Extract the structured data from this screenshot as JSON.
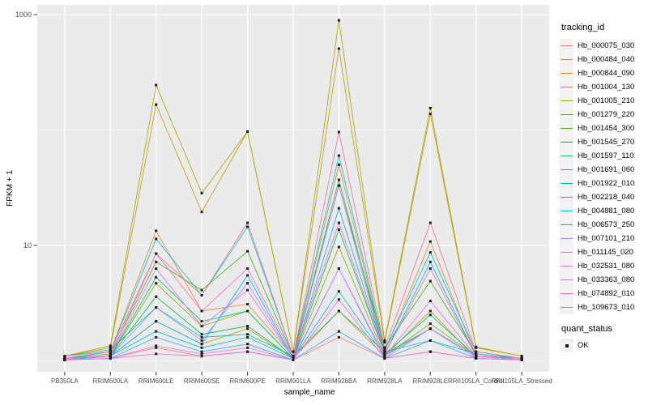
{
  "figure": {
    "y_axis_title": "FPKM + 1",
    "x_axis_title": "sample_name"
  },
  "legend": {
    "tracking_title": "tracking_id",
    "quant_title": "quant_status",
    "quant_items": [
      {
        "label": "OK"
      }
    ]
  },
  "chart_data": {
    "type": "line",
    "title": "",
    "xlabel": "sample_name",
    "ylabel": "FPKM + 1",
    "y_scale": "log10",
    "ylim": [
      0.8,
      1200
    ],
    "grid": "on",
    "legend_position": "right",
    "panel_bg": "#EBEBEB",
    "grid_color": "#FFFFFF",
    "point_color": "#1a1a1a",
    "axis_text_color": "#4D4D4D",
    "y_ticks": [
      {
        "label": "1000",
        "value": 1000
      },
      {
        "label": "10",
        "value": 10
      }
    ],
    "y_minor_ticks": [
      1,
      100
    ],
    "categories": [
      "PB350LA",
      "RRIM600LA",
      "RRIM600LE",
      "RRIM600SE",
      "RRIM600PE",
      "RRIM901LA",
      "RRIM928BA",
      "RRIM928LA",
      "RRIM928LE",
      "RRII105LA_Control",
      "RRII105LA_Stressed"
    ],
    "series": [
      {
        "name": "Hb_000075_030",
        "color": "#F8766D",
        "values": [
          1.02,
          1.05,
          1.3,
          1.1,
          1.2,
          1.02,
          1.6,
          1.05,
          1.2,
          1.05,
          1.02
        ]
      },
      {
        "name": "Hb_000484_040",
        "color": "#EA8331",
        "values": [
          1.05,
          1.2,
          13.4,
          2.7,
          3.1,
          1.1,
          50,
          1.2,
          10.8,
          1.1,
          1.05
        ]
      },
      {
        "name": "Hb_000844_090",
        "color": "#D89000",
        "values": [
          1.02,
          1.1,
          2.2,
          1.4,
          1.9,
          1.05,
          2.7,
          1.1,
          2.7,
          1.05,
          1.02
        ]
      },
      {
        "name": "Hb_001004_130",
        "color": "#C09B00",
        "values": [
          1.1,
          1.3,
          166,
          19.5,
          97,
          1.2,
          507,
          1.45,
          138,
          1.3,
          1.1
        ]
      },
      {
        "name": "Hb_001005_210",
        "color": "#A3A500",
        "values": [
          1.1,
          1.35,
          245,
          28.4,
          97,
          1.2,
          892,
          1.5,
          155,
          1.32,
          1.1
        ]
      },
      {
        "name": "Hb_001279_220",
        "color": "#7CAE00",
        "values": [
          1.02,
          1.1,
          4.7,
          2.0,
          2.7,
          1.05,
          9.7,
          1.1,
          2.1,
          1.1,
          1.02
        ]
      },
      {
        "name": "Hb_001454_300",
        "color": "#39B600",
        "values": [
          1.05,
          1.15,
          7.2,
          4.1,
          8.9,
          1.1,
          33,
          1.3,
          4.9,
          1.15,
          1.05
        ]
      },
      {
        "name": "Hb_001545_270",
        "color": "#00BB4E",
        "values": [
          1.02,
          1.1,
          3.6,
          1.7,
          2.0,
          1.05,
          13.7,
          1.15,
          1.9,
          1.1,
          1.02
        ]
      },
      {
        "name": "Hb_001597_110",
        "color": "#00BF7D",
        "values": [
          1.05,
          1.1,
          5.3,
          2.2,
          2.7,
          1.05,
          37,
          1.15,
          2.5,
          1.1,
          1.05
        ]
      },
      {
        "name": "Hb_001691_060",
        "color": "#00C1A3",
        "values": [
          1.1,
          1.25,
          2.9,
          1.6,
          1.7,
          1.1,
          2.7,
          1.2,
          1.5,
          1.15,
          1.05
        ]
      },
      {
        "name": "Hb_001922_010",
        "color": "#00BFC4",
        "values": [
          1.05,
          1.2,
          11.4,
          3.7,
          14.5,
          1.1,
          60,
          1.25,
          8.7,
          1.2,
          1.05
        ]
      },
      {
        "name": "Hb_002218_040",
        "color": "#00BAE0",
        "values": [
          1.02,
          1.1,
          1.8,
          1.3,
          1.6,
          1.05,
          4.0,
          1.1,
          1.9,
          1.1,
          1.02
        ]
      },
      {
        "name": "Hb_004881_080",
        "color": "#00B0F6",
        "values": [
          1.05,
          1.1,
          2.2,
          1.4,
          5.5,
          1.05,
          21,
          1.15,
          7.2,
          1.1,
          1.05
        ]
      },
      {
        "name": "Hb_006573_250",
        "color": "#35A2FF",
        "values": [
          1.02,
          1.05,
          1.6,
          1.2,
          1.4,
          1.02,
          1.8,
          1.05,
          1.5,
          1.05,
          1.02
        ]
      },
      {
        "name": "Hb_007101_210",
        "color": "#9590FF",
        "values": [
          1.02,
          1.1,
          2.9,
          1.5,
          4.7,
          1.05,
          6.3,
          1.1,
          1.9,
          1.1,
          1.02
        ]
      },
      {
        "name": "Hb_011145_020",
        "color": "#C77CFF",
        "values": [
          1.02,
          1.05,
          1.35,
          1.15,
          1.3,
          1.02,
          6.3,
          1.05,
          1.9,
          1.05,
          1.02
        ]
      },
      {
        "name": "Hb_032531_080",
        "color": "#E76BF3",
        "values": [
          1.05,
          1.1,
          6.3,
          2.0,
          4.1,
          1.05,
          33,
          1.1,
          3.3,
          1.1,
          1.02
        ]
      },
      {
        "name": "Hb_033363_080",
        "color": "#FA62DB",
        "values": [
          1.02,
          1.05,
          1.15,
          1.1,
          1.2,
          1.02,
          3.4,
          1.05,
          1.2,
          1.05,
          1.02
        ]
      },
      {
        "name": "Hb_074892_010",
        "color": "#FF61C9",
        "values": [
          1.05,
          1.1,
          8.5,
          2.7,
          6.3,
          1.1,
          15.7,
          1.15,
          6.3,
          1.1,
          1.05
        ]
      },
      {
        "name": "Hb_109673_010",
        "color": "#FF6A98",
        "values": [
          1.1,
          1.2,
          8.5,
          3.7,
          15.7,
          1.1,
          96,
          1.3,
          15.7,
          1.2,
          1.05
        ]
      }
    ]
  }
}
